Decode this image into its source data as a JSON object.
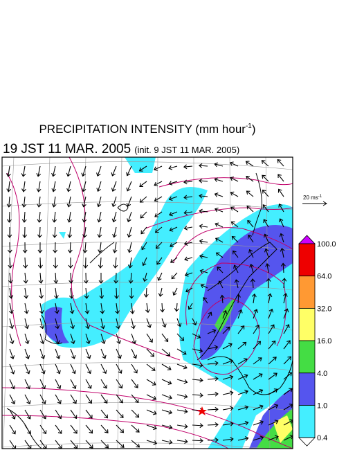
{
  "header": {
    "title": "PRECIPITATION INTENSITY (mm hour",
    "title_sup": "-1",
    "title_end": ")",
    "time": "19 JST 11 MAR. 2005",
    "init": "(init. 9 JST 11 MAR. 2005)"
  },
  "scale": {
    "label": "20 ms",
    "sup": "-1"
  },
  "legend": {
    "labels": [
      "100.0",
      "64.0",
      "32.0",
      "16.0",
      "4.0",
      "1.0",
      "0.4"
    ]
  }
}
